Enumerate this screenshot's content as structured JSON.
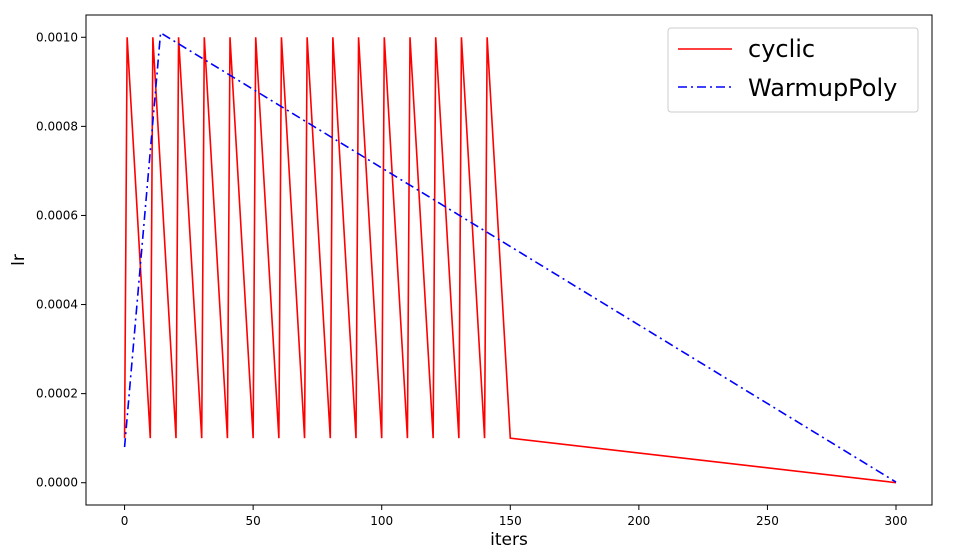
{
  "chart_data": {
    "type": "line",
    "title": "",
    "xlabel": "iters",
    "ylabel": "lr",
    "xlim": [
      -15,
      314
    ],
    "ylim": [
      -5e-05,
      0.00105
    ],
    "xticks": [
      0,
      50,
      100,
      150,
      200,
      250,
      300
    ],
    "xtick_labels": [
      "0",
      "50",
      "100",
      "150",
      "200",
      "250",
      "300"
    ],
    "yticks": [
      0,
      0.0002,
      0.0004,
      0.0006,
      0.0008,
      0.001
    ],
    "ytick_labels": [
      "0.0000",
      "0.0002",
      "0.0004",
      "0.0006",
      "0.0008",
      "0.0010"
    ],
    "grid": false,
    "legend_position": "top-right",
    "series": [
      {
        "name": "cyclic",
        "color": "#ff0000",
        "line_style": "solid",
        "x": [
          0,
          1,
          10,
          11,
          20,
          21,
          30,
          31,
          40,
          41,
          50,
          51,
          60,
          61,
          70,
          71,
          80,
          81,
          90,
          91,
          100,
          101,
          110,
          111,
          120,
          121,
          130,
          131,
          140,
          141,
          150,
          300
        ],
        "y": [
          0.0001,
          0.001,
          0.0001,
          0.001,
          0.0001,
          0.001,
          0.0001,
          0.001,
          0.0001,
          0.001,
          0.0001,
          0.001,
          0.0001,
          0.001,
          0.0001,
          0.001,
          0.0001,
          0.001,
          0.0001,
          0.001,
          0.0001,
          0.001,
          0.0001,
          0.001,
          0.0001,
          0.001,
          0.0001,
          0.001,
          0.0001,
          0.001,
          0.0001,
          1e-07
        ]
      },
      {
        "name": "WarmupPoly",
        "color": "#0000ff",
        "line_style": "dashdot",
        "x": [
          0,
          14,
          300
        ],
        "y": [
          8e-05,
          0.00101,
          1.5e-06
        ]
      }
    ]
  }
}
